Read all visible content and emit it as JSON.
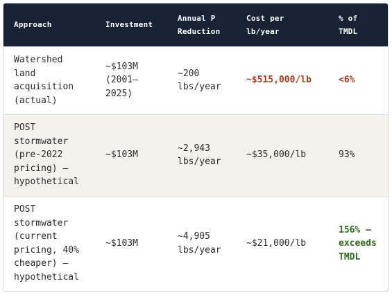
{
  "table": {
    "headers": [
      "Approach",
      "Investment",
      "Annual P\nReduction",
      "Cost per\nlb/year",
      "% of\nTMDL"
    ],
    "rows": [
      {
        "approach": "Watershed\nland\nacquisition\n(actual)",
        "investment": "~$103M\n(2001–\n2025)",
        "reduction": "~200\nlbs/year",
        "cost": "~$515,000/lb",
        "tmdl": "<6%"
      },
      {
        "approach": "POST\nstormwater\n(pre-2022\npricing) —\nhypothetical",
        "investment": "~$103M",
        "reduction": "~2,943\nlbs/year",
        "cost": "~$35,000/lb",
        "tmdl": "93%"
      },
      {
        "approach": "POST\nstormwater\n(current\npricing, 40%\ncheaper) —\nhypothetical",
        "investment": "~$103M",
        "reduction": "~4,905\nlbs/year",
        "cost": "~$21,000/lb",
        "tmdl": "156% —\nexceeds\nTMDL"
      }
    ]
  },
  "colors": {
    "header_bg": "#172236",
    "header_text": "#ffffff",
    "highlight_bad": "#b23a1c",
    "highlight_good": "#2e6b1e",
    "alt_row_bg": "#f5f2ee"
  }
}
